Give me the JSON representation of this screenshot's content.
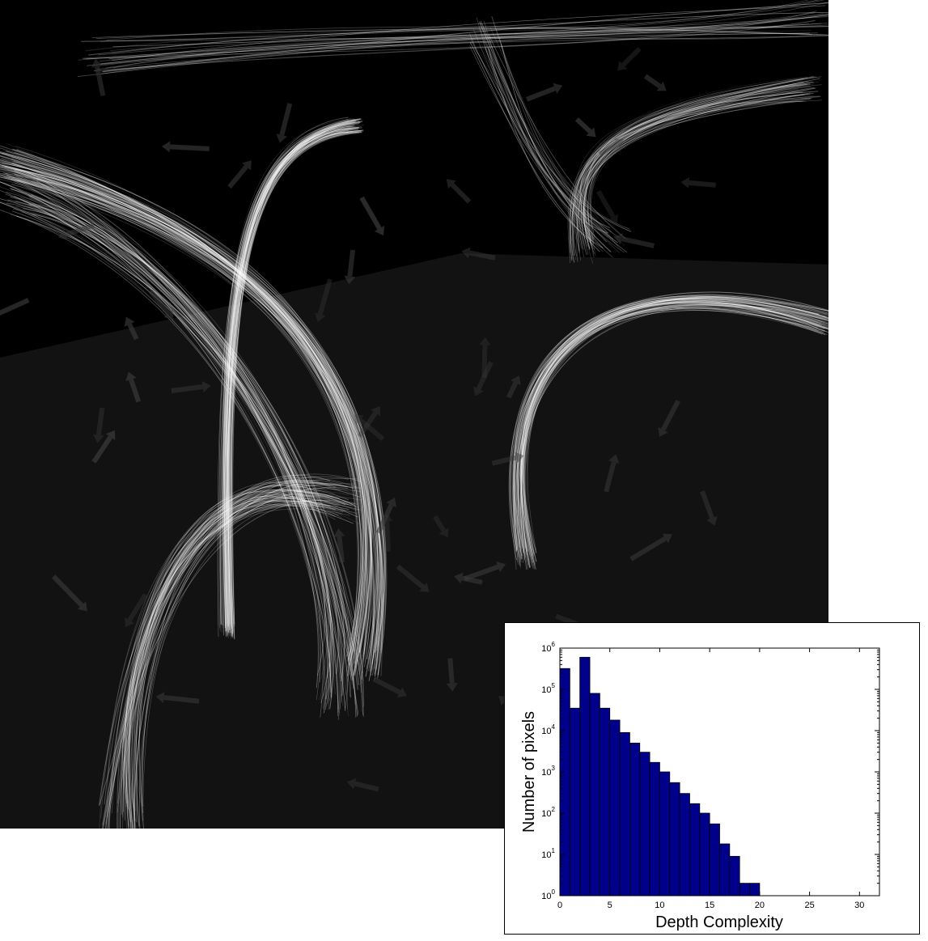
{
  "colors": {
    "sky": "#000000",
    "floor": "#121212",
    "streamline": "#ffffff",
    "glyph": "#3a3a3a",
    "bar_fill": "#00008b",
    "bar_stroke": "#000000"
  },
  "chart_data": {
    "type": "bar",
    "xlabel": "Depth Complexity",
    "ylabel": "Number of pixels",
    "xlim": [
      0,
      32
    ],
    "ylim": [
      1,
      1000000
    ],
    "yscale": "log",
    "xticks": [
      0,
      5,
      10,
      15,
      20,
      25,
      30
    ],
    "yticks": [
      {
        "value": 1,
        "base": "10",
        "exp": "0"
      },
      {
        "value": 10,
        "base": "10",
        "exp": "1"
      },
      {
        "value": 100,
        "base": "10",
        "exp": "2"
      },
      {
        "value": 1000,
        "base": "10",
        "exp": "3"
      },
      {
        "value": 10000,
        "base": "10",
        "exp": "4"
      },
      {
        "value": 100000,
        "base": "10",
        "exp": "5"
      },
      {
        "value": 1000000,
        "base": "10",
        "exp": "6"
      }
    ],
    "grid": false,
    "x": [
      0,
      1,
      2,
      3,
      4,
      5,
      6,
      7,
      8,
      9,
      10,
      11,
      12,
      13,
      14,
      15,
      16,
      17,
      18,
      19
    ],
    "values": [
      320000,
      35000,
      600000,
      80000,
      35000,
      18000,
      9000,
      5000,
      3000,
      1700,
      1000,
      550,
      300,
      170,
      100,
      55,
      18,
      9,
      2,
      2
    ]
  }
}
